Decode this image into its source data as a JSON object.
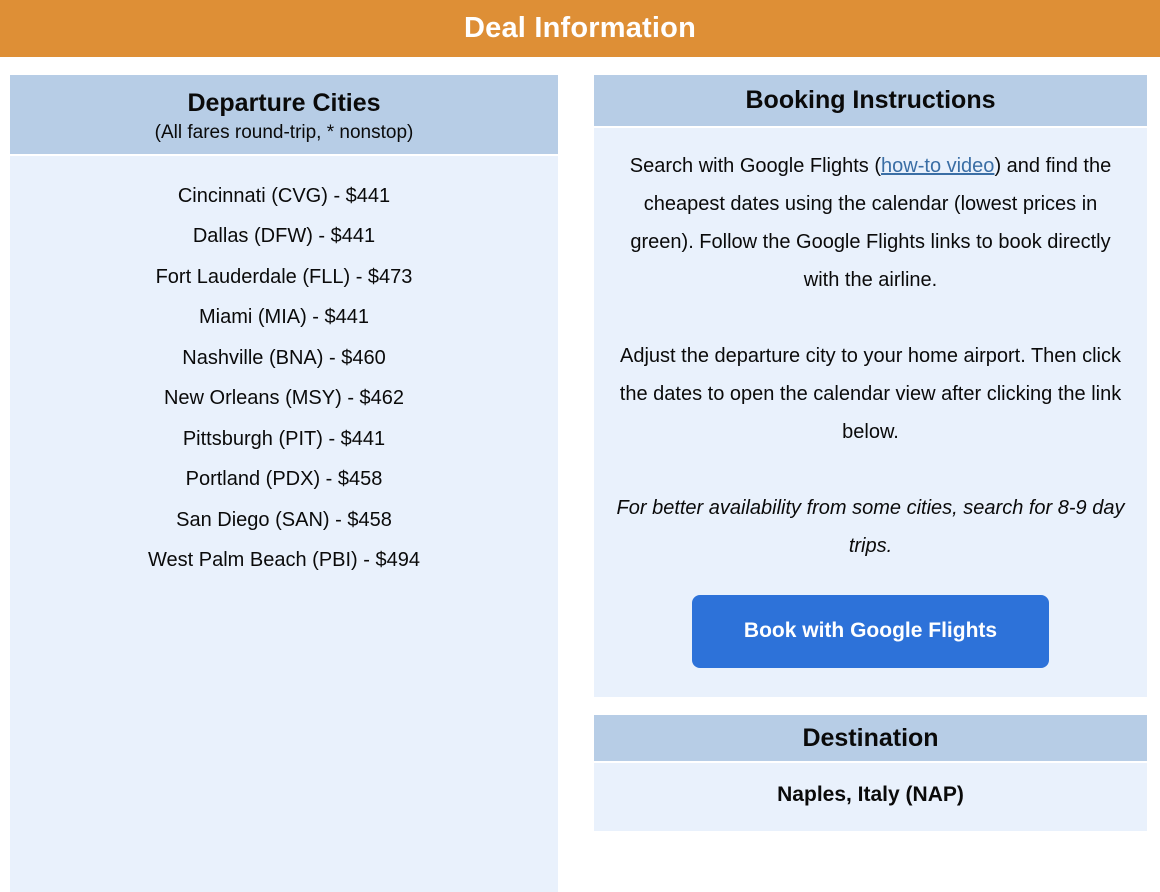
{
  "page": {
    "title": "Deal Information"
  },
  "colors": {
    "header_orange": "#de8f36",
    "panel_header_blue": "#b7cde6",
    "panel_body_blue": "#e9f1fc",
    "button_blue": "#2d72d9",
    "link_blue": "#3a6ea5"
  },
  "departure": {
    "title": "Departure Cities",
    "subtitle": "(All fares round-trip, * nonstop)",
    "cities": [
      "Cincinnati (CVG) - $441",
      "Dallas (DFW) - $441",
      "Fort Lauderdale (FLL) - $473",
      "Miami (MIA) - $441",
      "Nashville (BNA) - $460",
      "New Orleans (MSY) - $462",
      "Pittsburgh (PIT) - $441",
      "Portland (PDX) - $458",
      "San Diego (SAN) - $458",
      "West Palm Beach (PBI) - $494"
    ]
  },
  "booking": {
    "title": "Booking Instructions",
    "para1_before_link": "Search with Google Flights (",
    "link_text": "how-to video",
    "para1_after_link": ") and find the cheapest dates using the calendar (lowest prices in green). Follow the Google Flights links to book directly with the airline.",
    "para2": "Adjust the departure city to your home airport. Then click the dates to open the calendar view after clicking the link below.",
    "note": "For better availability from some cities, search for 8-9 day trips.",
    "button_label": "Book with Google Flights"
  },
  "destination": {
    "title": "Destination",
    "value": "Naples, Italy (NAP)"
  }
}
